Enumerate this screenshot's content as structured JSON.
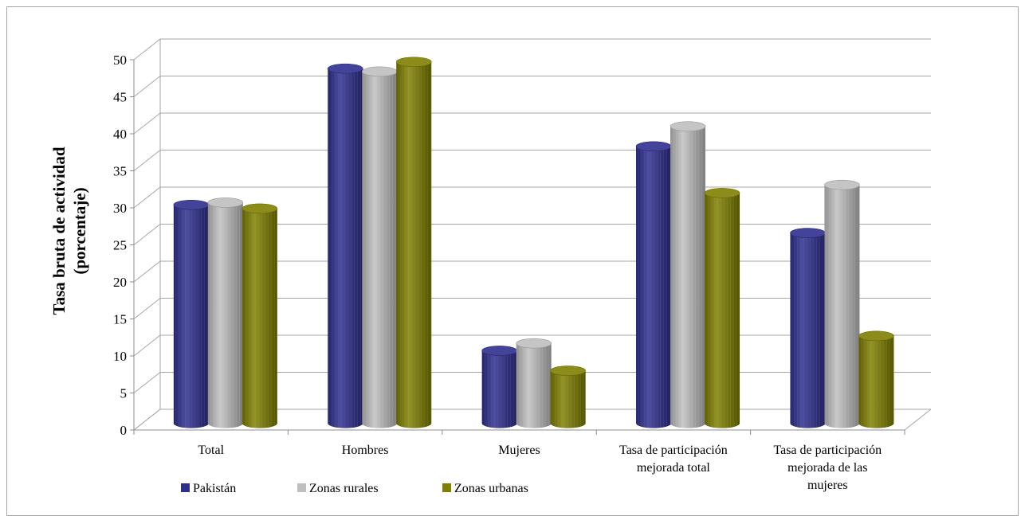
{
  "chart_data": {
    "type": "bar",
    "title": "",
    "ylabel": [
      "Tasa bruta de actividad",
      "(porcentaje)"
    ],
    "xlabel": "",
    "ylim": [
      0,
      50
    ],
    "yticks": [
      "0",
      "5",
      "10",
      "15",
      "20",
      "25",
      "30",
      "35",
      "40",
      "45",
      "50"
    ],
    "categories": [
      [
        "Total"
      ],
      [
        "Hombres"
      ],
      [
        "Mujeres"
      ],
      [
        "Tasa de participación",
        "mejorada total"
      ],
      [
        "Tasa de participación",
        "mejorada de las",
        "mujeres"
      ]
    ],
    "series": [
      {
        "name": "Pakistán",
        "color": "#2e2e8f",
        "values": [
          29.5,
          47.9,
          9.8,
          37.4,
          25.7
        ]
      },
      {
        "name": "Zonas rurales",
        "color": "#bfbfbf",
        "values": [
          29.8,
          47.5,
          10.8,
          40.1,
          32.2
        ]
      },
      {
        "name": "Zonas urbanas",
        "color": "#7f7f00",
        "values": [
          29.0,
          48.8,
          7.1,
          31.1,
          11.8
        ]
      }
    ],
    "grid": true,
    "legend": "bottom-left"
  }
}
